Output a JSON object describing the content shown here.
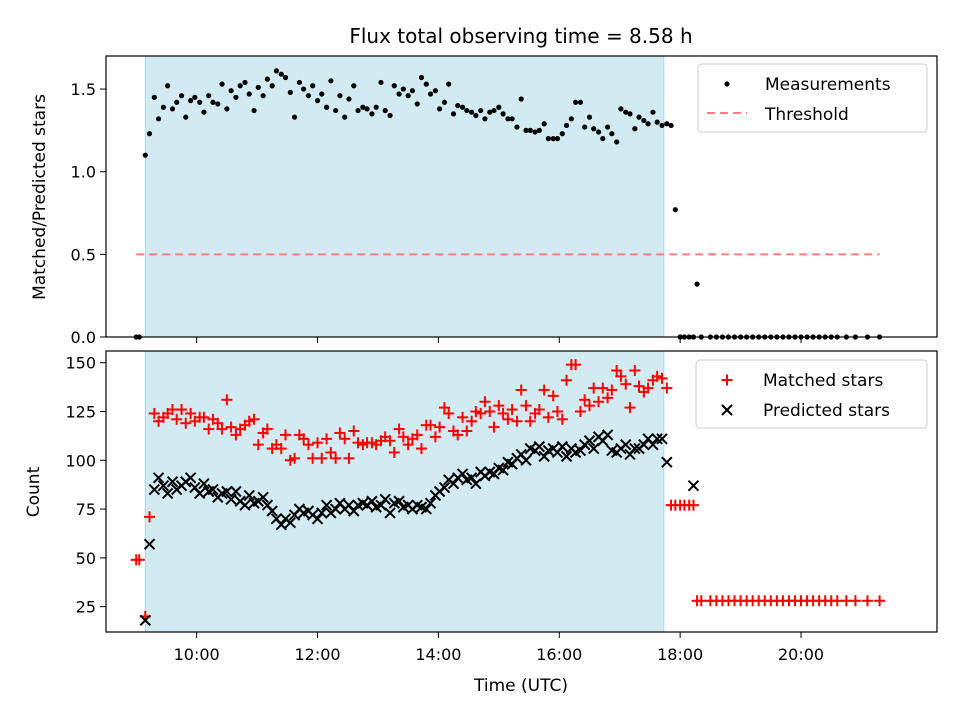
{
  "title": "Flux total observing time = 8.58 h",
  "colors": {
    "shade": "#add8e6",
    "threshold": "#ff7f7f",
    "matched": "#ff0000",
    "predicted": "#000000",
    "measure": "#000000"
  },
  "chart_data": [
    {
      "type": "scatter",
      "ylabel": "Matched/Predicted stars",
      "xlim": [
        8.5,
        22.25
      ],
      "ylim": [
        0,
        1.7
      ],
      "yticks": [
        "0.0",
        "0.5",
        "1.0",
        "1.5"
      ],
      "shaded_interval": [
        9.15,
        17.73
      ],
      "legend": {
        "position": "top-right",
        "entries": [
          "Measurements",
          "Threshold"
        ]
      },
      "threshold": {
        "name": "Threshold",
        "y": 0.5,
        "x": [
          9.0,
          21.3
        ]
      },
      "series": [
        {
          "name": "Measurements",
          "x": [
            9.0,
            9.05,
            9.15,
            9.22,
            9.3,
            9.37,
            9.45,
            9.52,
            9.6,
            9.67,
            9.75,
            9.82,
            9.9,
            9.97,
            10.05,
            10.12,
            10.2,
            10.27,
            10.35,
            10.42,
            10.5,
            10.57,
            10.65,
            10.72,
            10.8,
            10.87,
            10.95,
            11.02,
            11.1,
            11.17,
            11.25,
            11.32,
            11.4,
            11.47,
            11.55,
            11.62,
            11.7,
            11.77,
            11.85,
            11.92,
            12.0,
            12.07,
            12.15,
            12.22,
            12.3,
            12.37,
            12.45,
            12.52,
            12.6,
            12.67,
            12.75,
            12.82,
            12.9,
            12.97,
            13.05,
            13.12,
            13.2,
            13.27,
            13.35,
            13.42,
            13.5,
            13.57,
            13.65,
            13.72,
            13.8,
            13.87,
            13.95,
            14.02,
            14.1,
            14.17,
            14.25,
            14.32,
            14.4,
            14.47,
            14.55,
            14.62,
            14.7,
            14.77,
            14.85,
            14.92,
            15.0,
            15.07,
            15.15,
            15.22,
            15.3,
            15.37,
            15.45,
            15.52,
            15.6,
            15.67,
            15.75,
            15.82,
            15.9,
            15.97,
            16.05,
            16.12,
            16.2,
            16.27,
            16.35,
            16.42,
            16.5,
            16.57,
            16.65,
            16.72,
            16.8,
            16.87,
            16.95,
            17.02,
            17.1,
            17.17,
            17.25,
            17.32,
            17.4,
            17.47,
            17.55,
            17.62,
            17.7,
            17.78,
            17.85,
            17.92,
            18.0,
            18.07,
            18.15,
            18.22,
            18.28,
            18.35,
            18.5,
            18.6,
            18.7,
            18.8,
            18.9,
            19.0,
            19.1,
            19.2,
            19.3,
            19.4,
            19.5,
            19.6,
            19.7,
            19.8,
            19.9,
            20.0,
            20.1,
            20.2,
            20.3,
            20.4,
            20.5,
            20.6,
            20.75,
            20.9,
            21.1,
            21.3
          ],
          "y": [
            0.0,
            0.0,
            1.1,
            1.23,
            1.45,
            1.32,
            1.39,
            1.52,
            1.38,
            1.42,
            1.46,
            1.33,
            1.43,
            1.45,
            1.42,
            1.36,
            1.46,
            1.42,
            1.41,
            1.53,
            1.38,
            1.49,
            1.45,
            1.52,
            1.54,
            1.47,
            1.37,
            1.51,
            1.46,
            1.56,
            1.52,
            1.61,
            1.59,
            1.57,
            1.48,
            1.33,
            1.54,
            1.5,
            1.46,
            1.52,
            1.43,
            1.47,
            1.39,
            1.55,
            1.37,
            1.46,
            1.33,
            1.44,
            1.52,
            1.37,
            1.39,
            1.38,
            1.35,
            1.39,
            1.54,
            1.37,
            1.34,
            1.52,
            1.47,
            1.5,
            1.46,
            1.49,
            1.41,
            1.57,
            1.53,
            1.47,
            1.49,
            1.38,
            1.42,
            1.53,
            1.35,
            1.4,
            1.39,
            1.37,
            1.36,
            1.34,
            1.37,
            1.32,
            1.36,
            1.37,
            1.39,
            1.35,
            1.32,
            1.32,
            1.27,
            1.44,
            1.25,
            1.25,
            1.24,
            1.25,
            1.29,
            1.2,
            1.2,
            1.2,
            1.23,
            1.28,
            1.32,
            1.42,
            1.42,
            1.27,
            1.33,
            1.26,
            1.24,
            1.2,
            1.27,
            1.23,
            1.18,
            1.38,
            1.36,
            1.35,
            1.26,
            1.33,
            1.31,
            1.29,
            1.36,
            1.3,
            1.28,
            1.29,
            1.28,
            0.77,
            0.0,
            0.0,
            0.0,
            0.0,
            0.32,
            0.0,
            0.0,
            0.0,
            0.0,
            0.0,
            0.0,
            0.0,
            0.0,
            0.0,
            0.0,
            0.0,
            0.0,
            0.0,
            0.0,
            0.0,
            0.0,
            0.0,
            0.0,
            0.0,
            0.0,
            0.0,
            0.0,
            0.0,
            0.0,
            0.0,
            0.0,
            0.0
          ]
        }
      ]
    },
    {
      "type": "scatter",
      "xlabel": "Time (UTC)",
      "ylabel": "Count",
      "xlim": [
        8.5,
        22.25
      ],
      "ylim": [
        12,
        156
      ],
      "xticks": [
        "10:00",
        "12:00",
        "14:00",
        "16:00",
        "18:00",
        "20:00"
      ],
      "yticks": [
        "25",
        "50",
        "75",
        "100",
        "125",
        "150"
      ],
      "shaded_interval": [
        9.15,
        17.73
      ],
      "legend": {
        "position": "top-right",
        "entries": [
          "Matched stars",
          "Predicted stars"
        ]
      },
      "series": [
        {
          "name": "Matched stars",
          "x": [
            9.0,
            9.05,
            9.15,
            9.22,
            9.3,
            9.37,
            9.45,
            9.52,
            9.6,
            9.67,
            9.75,
            9.82,
            9.9,
            9.97,
            10.05,
            10.12,
            10.2,
            10.27,
            10.35,
            10.42,
            10.5,
            10.57,
            10.65,
            10.72,
            10.8,
            10.87,
            10.95,
            11.02,
            11.1,
            11.17,
            11.25,
            11.32,
            11.4,
            11.47,
            11.55,
            11.62,
            11.7,
            11.77,
            11.85,
            11.92,
            12.0,
            12.07,
            12.15,
            12.22,
            12.3,
            12.37,
            12.45,
            12.52,
            12.6,
            12.67,
            12.75,
            12.82,
            12.9,
            12.97,
            13.05,
            13.12,
            13.2,
            13.27,
            13.35,
            13.42,
            13.5,
            13.57,
            13.65,
            13.72,
            13.8,
            13.87,
            13.95,
            14.02,
            14.1,
            14.17,
            14.25,
            14.32,
            14.4,
            14.47,
            14.55,
            14.62,
            14.7,
            14.77,
            14.85,
            14.92,
            15.0,
            15.07,
            15.15,
            15.22,
            15.3,
            15.37,
            15.45,
            15.52,
            15.6,
            15.67,
            15.75,
            15.82,
            15.9,
            15.97,
            16.05,
            16.12,
            16.2,
            16.27,
            16.35,
            16.42,
            16.5,
            16.57,
            16.65,
            16.72,
            16.8,
            16.87,
            16.95,
            17.02,
            17.1,
            17.17,
            17.25,
            17.32,
            17.4,
            17.47,
            17.55,
            17.62,
            17.7,
            17.78,
            17.85,
            17.92,
            18.0,
            18.07,
            18.15,
            18.22,
            18.28,
            18.35,
            18.5,
            18.6,
            18.7,
            18.8,
            18.9,
            19.0,
            19.1,
            19.2,
            19.3,
            19.4,
            19.5,
            19.6,
            19.7,
            19.8,
            19.9,
            20.0,
            20.1,
            20.2,
            20.3,
            20.4,
            20.5,
            20.6,
            20.75,
            20.9,
            21.1,
            21.3
          ],
          "y": [
            49,
            49,
            20,
            71,
            124,
            120,
            122,
            124,
            126,
            121,
            126,
            119,
            124,
            120,
            122,
            122,
            116,
            121,
            119,
            116,
            131,
            117,
            113,
            116,
            118,
            120,
            121,
            108,
            114,
            116,
            106,
            108,
            106,
            113,
            100,
            101,
            113,
            111,
            108,
            101,
            109,
            101,
            111,
            104,
            101,
            114,
            111,
            101,
            115,
            109,
            108,
            109,
            109,
            108,
            110,
            112,
            110,
            104,
            116,
            112,
            108,
            111,
            113,
            106,
            118,
            118,
            112,
            117,
            127,
            124,
            115,
            113,
            122,
            115,
            120,
            125,
            124,
            130,
            125,
            117,
            128,
            124,
            121,
            126,
            120,
            136,
            128,
            120,
            124,
            126,
            136,
            122,
            133,
            125,
            121,
            141,
            149,
            149,
            125,
            131,
            128,
            137,
            130,
            137,
            132,
            136,
            146,
            143,
            139,
            127,
            146,
            138,
            135,
            137,
            141,
            143,
            142,
            137,
            77,
            77,
            77,
            77,
            77,
            77,
            28,
            28,
            28,
            28,
            28,
            28,
            28,
            28,
            28,
            28,
            28,
            28,
            28,
            28,
            28,
            28,
            28,
            28,
            28,
            28,
            28,
            28,
            28,
            28,
            28,
            28,
            28,
            28
          ]
        },
        {
          "name": "Predicted stars",
          "x": [
            9.15,
            9.22,
            9.3,
            9.37,
            9.45,
            9.52,
            9.6,
            9.67,
            9.75,
            9.82,
            9.9,
            9.97,
            10.05,
            10.12,
            10.2,
            10.27,
            10.35,
            10.42,
            10.5,
            10.57,
            10.65,
            10.72,
            10.8,
            10.87,
            10.95,
            11.02,
            11.1,
            11.17,
            11.25,
            11.32,
            11.4,
            11.47,
            11.55,
            11.62,
            11.7,
            11.77,
            11.85,
            11.92,
            12.0,
            12.07,
            12.15,
            12.22,
            12.3,
            12.37,
            12.45,
            12.52,
            12.6,
            12.67,
            12.75,
            12.82,
            12.9,
            12.97,
            13.05,
            13.12,
            13.2,
            13.27,
            13.35,
            13.42,
            13.5,
            13.57,
            13.65,
            13.72,
            13.8,
            13.87,
            13.95,
            14.02,
            14.1,
            14.17,
            14.25,
            14.32,
            14.4,
            14.47,
            14.55,
            14.62,
            14.7,
            14.77,
            14.85,
            14.92,
            15.0,
            15.07,
            15.15,
            15.22,
            15.3,
            15.37,
            15.45,
            15.52,
            15.6,
            15.67,
            15.75,
            15.82,
            15.9,
            15.97,
            16.05,
            16.12,
            16.2,
            16.27,
            16.35,
            16.42,
            16.5,
            16.57,
            16.65,
            16.72,
            16.8,
            16.87,
            16.95,
            17.02,
            17.1,
            17.17,
            17.25,
            17.32,
            17.4,
            17.47,
            17.55,
            17.62,
            17.7,
            17.78,
            18.22
          ],
          "y": [
            18,
            57,
            85,
            91,
            87,
            83,
            89,
            85,
            87,
            89,
            91,
            86,
            83,
            88,
            84,
            85,
            81,
            83,
            84,
            80,
            84,
            79,
            77,
            82,
            78,
            79,
            81,
            77,
            74,
            70,
            67,
            70,
            68,
            72,
            75,
            73,
            74,
            72,
            70,
            73,
            77,
            73,
            75,
            78,
            75,
            77,
            74,
            77,
            78,
            77,
            79,
            76,
            77,
            80,
            73,
            78,
            79,
            76,
            77,
            75,
            77,
            76,
            75,
            78,
            82,
            84,
            86,
            90,
            88,
            91,
            93,
            90,
            91,
            88,
            94,
            92,
            94,
            93,
            96,
            95,
            99,
            98,
            101,
            103,
            100,
            106,
            105,
            107,
            102,
            105,
            106,
            104,
            107,
            102,
            106,
            104,
            105,
            108,
            110,
            106,
            112,
            110,
            113,
            105,
            104,
            106,
            108,
            103,
            106,
            106,
            108,
            111,
            108,
            111,
            111,
            99,
            87
          ]
        }
      ]
    }
  ]
}
